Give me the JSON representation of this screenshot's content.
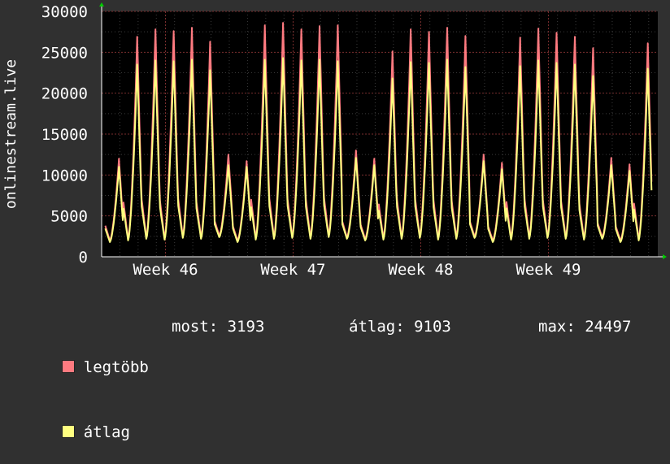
{
  "chart_data": {
    "type": "area",
    "ylabel": "onlinestream.live",
    "ylim": [
      0,
      30000
    ],
    "y_ticks": [
      "30000",
      "25000",
      "20000",
      "15000",
      "10000",
      "5000",
      "0"
    ],
    "y_tick_values": [
      30000,
      25000,
      20000,
      15000,
      10000,
      5000,
      0
    ],
    "x_ticks": [
      "Week 46",
      "Week 47",
      "Week 48",
      "Week 49"
    ],
    "x_tick_days": [
      3.5,
      10.5,
      17.5,
      24.5
    ],
    "x_range_days": [
      0,
      30.5
    ],
    "grid": true,
    "series": [
      {
        "name": "legtöbb",
        "color": "#ff7a80",
        "daily_peaks": [
          12000,
          26900,
          27800,
          27600,
          28000,
          26300,
          12500,
          11700,
          28300,
          28600,
          27800,
          28200,
          28300,
          13000,
          12000,
          25100,
          27800,
          27500,
          28000,
          27000,
          12500,
          11500,
          26800,
          27900,
          27400,
          26900,
          25500,
          12100,
          11300,
          26100
        ],
        "daily_troughs": [
          2000,
          2200,
          2400,
          2300,
          2500,
          2400,
          2600,
          2000,
          2300,
          2400,
          2500,
          2400,
          2600,
          2400,
          2200,
          2300,
          2400,
          2500,
          2300,
          2400,
          2500,
          2000,
          2300,
          2400,
          2500,
          2400,
          2300,
          2400,
          2000,
          2200
        ]
      },
      {
        "name": "átlag",
        "color": "#ffff80",
        "daily_peaks": [
          11000,
          23500,
          24000,
          23900,
          24100,
          22800,
          11200,
          11000,
          24100,
          24300,
          24000,
          24100,
          23900,
          12100,
          11200,
          21800,
          23800,
          23700,
          24100,
          23200,
          11700,
          10700,
          23300,
          24000,
          23700,
          23500,
          22100,
          11200,
          10500,
          23000
        ],
        "daily_troughs": [
          1800,
          2000,
          2200,
          2100,
          2300,
          2200,
          2400,
          1800,
          2100,
          2200,
          2300,
          2200,
          2400,
          2200,
          2000,
          2100,
          2200,
          2300,
          2100,
          2200,
          2300,
          1800,
          2100,
          2200,
          2300,
          2200,
          2100,
          2200,
          1800,
          2000
        ]
      }
    ]
  },
  "legend": {
    "max_label": "legtöbb",
    "avg_label": "átlag",
    "max_color": "#ff7a80",
    "avg_color": "#ffff80"
  },
  "stats": {
    "current": "most: 3193",
    "average": "átlag: 9103",
    "maximum": "max: 24497"
  }
}
